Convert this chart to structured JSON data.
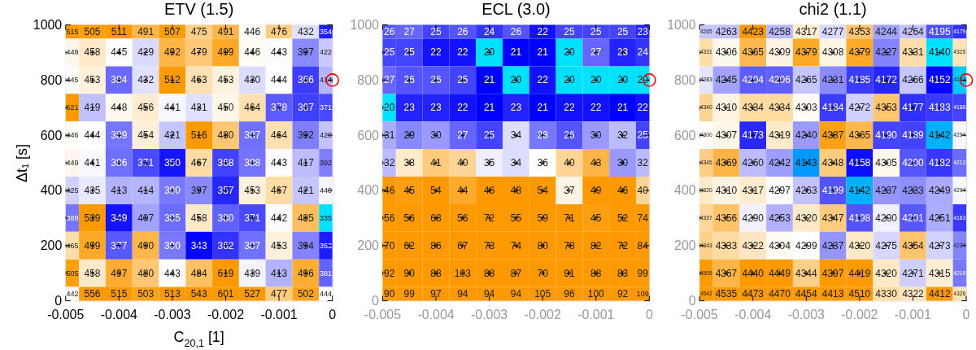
{
  "chart_data": [
    {
      "type": "heatmap",
      "title": "ETV (1.5)",
      "xlabel": "C$_{20,1}$ [1]",
      "ylabel": "Δt₁ [s]",
      "x": [
        -0.005,
        -0.0045,
        -0.004,
        -0.0035,
        -0.003,
        -0.0025,
        -0.002,
        -0.0015,
        -0.001,
        -0.0005,
        0
      ],
      "xlim": [
        -0.005,
        0
      ],
      "xticks": [
        -0.005,
        -0.004,
        -0.003,
        -0.002,
        -0.001,
        0
      ],
      "ylim": [
        0,
        1000
      ],
      "yticks": [
        0,
        200,
        400,
        600,
        800,
        1000
      ],
      "data_labels": true,
      "cells": [
        [
          515,
          505,
          511,
          491,
          507,
          475,
          491,
          446,
          476,
          432,
          354
        ],
        [
          449,
          458,
          445,
          429,
          492,
          479,
          499,
          446,
          443,
          397,
          422
        ],
        [
          445,
          453,
          384,
          432,
          512,
          463,
          453,
          430,
          444,
          366,
          414
        ],
        [
          621,
          419,
          448,
          456,
          441,
          431,
          450,
          464,
          378,
          367,
          371
        ],
        [
          446,
          444,
          389,
          454,
          421,
          516,
          480,
          387,
          464,
          392,
          420
        ],
        [
          449,
          441,
          386,
          371,
          350,
          467,
          368,
          388,
          443,
          417,
          392
        ],
        [
          425,
          435,
          413,
          414,
          390,
          397,
          357,
          453,
          467,
          421,
          440
        ],
        [
          389,
          539,
          349,
          407,
          385,
          458,
          380,
          371,
          442,
          485,
          335
        ],
        [
          465,
          499,
          377,
          490,
          390,
          343,
          362,
          387,
          453,
          394,
          353
        ],
        [
          505,
          458,
          497,
          480,
          443,
          484,
          619,
          439,
          413,
          496,
          381
        ],
        [
          442,
          556,
          515,
          503,
          513,
          543,
          601,
          527,
          477,
          502,
          444
        ]
      ],
      "series": [
        {
          "type": "scatter",
          "marker": "cross",
          "color": "#000000",
          "x": [
            -0.005,
            -0.0045,
            -0.004,
            -0.0035,
            -0.003,
            -0.0025,
            -0.002,
            -0.0015,
            -0.001,
            -0.0005,
            -0.005,
            -0.0045,
            -0.004,
            -0.0035,
            -0.003,
            -0.0025,
            -0.002,
            -0.0015,
            -0.001,
            -0.0005,
            -0.005,
            -0.0045,
            -0.004,
            -0.0035,
            -0.003,
            -0.0025,
            -0.002,
            -0.0015,
            -0.001,
            -0.0005,
            -0.005,
            -0.0045,
            -0.004,
            -0.0035,
            -0.003,
            -0.0025,
            -0.002,
            -0.0015,
            -0.001,
            -0.0005,
            -0.005,
            -0.0045,
            -0.004,
            -0.0035,
            -0.003,
            -0.0025,
            -0.002,
            -0.0015,
            -0.001,
            -0.0005,
            -0.005,
            -0.0045,
            -0.004,
            -0.0035,
            -0.003,
            -0.0025,
            -0.002,
            -0.0015,
            -0.001,
            -0.0005,
            -0.005,
            -0.0045,
            -0.004,
            -0.0035,
            -0.003,
            -0.0025,
            -0.002,
            -0.0015,
            -0.001,
            -0.0005,
            -0.005,
            -0.0045,
            -0.004,
            -0.0035,
            -0.003,
            -0.0025,
            -0.002,
            -0.0015,
            -0.001,
            -0.0005,
            -0.005,
            -0.0045,
            -0.004,
            -0.0035,
            -0.003,
            -0.0025,
            -0.002,
            -0.0015,
            -0.001,
            -0.0005,
            0
          ],
          "values": [
            900,
            900,
            900,
            900,
            900,
            900,
            900,
            900,
            900,
            900,
            800,
            800,
            800,
            800,
            800,
            800,
            800,
            800,
            800,
            800,
            700,
            700,
            700,
            700,
            700,
            700,
            700,
            700,
            700,
            700,
            600,
            600,
            600,
            600,
            600,
            600,
            600,
            600,
            600,
            600,
            500,
            500,
            500,
            500,
            500,
            500,
            500,
            500,
            500,
            500,
            400,
            400,
            400,
            400,
            400,
            400,
            400,
            400,
            400,
            400,
            300,
            300,
            300,
            300,
            300,
            300,
            300,
            300,
            300,
            300,
            200,
            200,
            200,
            200,
            200,
            200,
            200,
            200,
            200,
            200,
            100,
            100,
            100,
            100,
            100,
            100,
            100,
            100,
            100,
            100,
            800
          ],
          "value_labels": [
            null,
            null,
            null,
            null,
            null,
            null,
            null,
            null,
            null,
            null,
            null,
            null,
            null,
            null,
            null,
            null,
            null,
            null,
            null,
            null,
            null,
            null,
            null,
            null,
            null,
            null,
            null,
            null,
            null,
            null,
            null,
            null,
            null,
            null,
            null,
            null,
            null,
            null,
            null,
            null,
            null,
            null,
            null,
            null,
            null,
            null,
            null,
            null,
            null,
            null,
            null,
            null,
            null,
            null,
            null,
            null,
            null,
            null,
            null,
            null,
            null,
            null,
            null,
            null,
            null,
            null,
            null,
            null,
            null,
            null,
            null,
            null,
            null,
            null,
            null,
            null,
            null,
            null,
            null,
            null,
            null,
            null,
            null,
            null,
            null,
            null,
            null,
            null,
            null,
            null,
            null
          ]
        },
        {
          "type": "scatter",
          "marker": "circle",
          "color": "#ee0000",
          "x": [
            0
          ],
          "values": [
            800
          ],
          "value_labels": [
            null
          ]
        }
      ]
    },
    {
      "type": "heatmap",
      "title": "ECL (3.0)",
      "x": [
        -0.005,
        -0.0045,
        -0.004,
        -0.0035,
        -0.003,
        -0.0025,
        -0.002,
        -0.0015,
        -0.001,
        -0.0005,
        0
      ],
      "xlim": [
        -0.005,
        0
      ],
      "xticks": [
        -0.005,
        -0.004,
        -0.003,
        -0.002,
        -0.001,
        0
      ],
      "ylim": [
        0,
        1000
      ],
      "yticks": [
        0,
        200,
        400,
        600,
        800,
        1000
      ],
      "data_labels": true,
      "cells": [
        [
          26,
          27,
          25,
          26,
          24,
          26,
          22,
          25,
          25,
          25,
          23
        ],
        [
          25,
          25,
          22,
          22,
          20,
          21,
          21,
          20,
          27,
          23,
          24
        ],
        [
          27,
          26,
          26,
          25,
          21,
          20,
          22,
          20,
          20,
          20,
          20
        ],
        [
          20,
          23,
          23,
          22,
          21,
          23,
          21,
          22,
          22,
          21,
          22
        ],
        [
          31,
          29,
          30,
          27,
          25,
          34,
          28,
          26,
          30,
          32,
          25
        ],
        [
          32,
          38,
          41,
          40,
          35,
          34,
          36,
          40,
          43,
          30,
          32
        ],
        [
          46,
          45,
          54,
          44,
          46,
          48,
          54,
          37,
          49,
          46,
          40
        ],
        [
          56,
          56,
          68,
          56,
          72,
          55,
          59,
          71,
          45,
          52,
          74
        ],
        [
          70,
          62,
          86,
          67,
          73,
          74,
          80,
          78,
          82,
          72,
          84
        ],
        [
          92,
          90,
          88,
          103,
          88,
          87,
          70,
          91,
          88,
          83,
          99
        ],
        [
          90,
          99,
          97,
          94,
          94,
          94,
          105,
          96,
          100,
          92,
          109
        ]
      ],
      "series": [
        {
          "type": "scatter",
          "marker": "cross",
          "color": "#000000",
          "x": [
            -0.005,
            -0.0045,
            -0.004,
            -0.0035,
            -0.003,
            -0.0025,
            -0.002,
            -0.0015,
            -0.001,
            -0.0005,
            -0.005,
            -0.0045,
            -0.004,
            -0.0035,
            -0.003,
            -0.0025,
            -0.002,
            -0.0015,
            -0.001,
            -0.0005,
            -0.005,
            -0.0045,
            -0.004,
            -0.0035,
            -0.003,
            -0.0025,
            -0.002,
            -0.0015,
            -0.001,
            -0.0005,
            -0.005,
            -0.0045,
            -0.004,
            -0.0035,
            -0.003,
            -0.0025,
            -0.002,
            -0.0015,
            -0.001,
            -0.0005,
            -0.005,
            -0.0045,
            -0.004,
            -0.0035,
            -0.003,
            -0.0025,
            -0.002,
            -0.0015,
            -0.001,
            -0.0005,
            -0.005,
            -0.0045,
            -0.004,
            -0.0035,
            -0.003,
            -0.0025,
            -0.002,
            -0.0015,
            -0.001,
            -0.0005,
            -0.005,
            -0.0045,
            -0.004,
            -0.0035,
            -0.003,
            -0.0025,
            -0.002,
            -0.0015,
            -0.001,
            -0.0005,
            -0.005,
            -0.0045,
            -0.004,
            -0.0035,
            -0.003,
            -0.0025,
            -0.002,
            -0.0015,
            -0.001,
            -0.0005,
            -0.005,
            -0.0045,
            -0.004,
            -0.0035,
            -0.003,
            -0.0025,
            -0.002,
            -0.0015,
            -0.001,
            -0.0005,
            0
          ],
          "values": [
            900,
            900,
            900,
            900,
            900,
            900,
            900,
            900,
            900,
            900,
            800,
            800,
            800,
            800,
            800,
            800,
            800,
            800,
            800,
            800,
            700,
            700,
            700,
            700,
            700,
            700,
            700,
            700,
            700,
            700,
            600,
            600,
            600,
            600,
            600,
            600,
            600,
            600,
            600,
            600,
            500,
            500,
            500,
            500,
            500,
            500,
            500,
            500,
            500,
            500,
            400,
            400,
            400,
            400,
            400,
            400,
            400,
            400,
            400,
            400,
            300,
            300,
            300,
            300,
            300,
            300,
            300,
            300,
            300,
            300,
            200,
            200,
            200,
            200,
            200,
            200,
            200,
            200,
            200,
            200,
            100,
            100,
            100,
            100,
            100,
            100,
            100,
            100,
            100,
            100,
            800
          ],
          "value_labels": [
            null,
            null,
            null,
            null,
            null,
            null,
            null,
            null,
            null,
            null,
            null,
            null,
            null,
            null,
            null,
            null,
            null,
            null,
            null,
            null,
            null,
            null,
            null,
            null,
            null,
            null,
            null,
            null,
            null,
            null,
            null,
            null,
            null,
            null,
            null,
            null,
            null,
            null,
            null,
            null,
            null,
            null,
            null,
            null,
            null,
            null,
            null,
            null,
            null,
            null,
            null,
            null,
            null,
            null,
            null,
            null,
            null,
            null,
            null,
            null,
            null,
            null,
            null,
            null,
            null,
            null,
            null,
            null,
            null,
            null,
            null,
            null,
            null,
            null,
            null,
            null,
            null,
            null,
            null,
            null,
            null,
            null,
            null,
            null,
            null,
            null,
            null,
            null,
            null,
            null,
            null
          ]
        },
        {
          "type": "scatter",
          "marker": "circle",
          "color": "#ee0000",
          "x": [
            0
          ],
          "values": [
            800
          ],
          "value_labels": [
            null
          ]
        }
      ]
    },
    {
      "type": "heatmap",
      "title": "chi2 (1.1)",
      "x": [
        -0.005,
        -0.0045,
        -0.004,
        -0.0035,
        -0.003,
        -0.0025,
        -0.002,
        -0.0015,
        -0.001,
        -0.0005,
        0
      ],
      "xlim": [
        -0.005,
        0
      ],
      "xticks": [
        -0.005,
        -0.004,
        -0.003,
        -0.002,
        -0.001,
        0
      ],
      "ylim": [
        0,
        1000
      ],
      "yticks": [
        0,
        200,
        400,
        600,
        800,
        1000
      ],
      "data_labels": true,
      "cells": [
        [
          4265,
          4263,
          4423,
          4258,
          4317,
          4277,
          4353,
          4244,
          4264,
          4195,
          4179
        ],
        [
          4331,
          4306,
          4365,
          4309,
          4379,
          4308,
          4379,
          4227,
          4331,
          4140,
          4325
        ],
        [
          4283,
          4245,
          4204,
          4206,
          4265,
          4231,
          4185,
          4172,
          4266,
          4152,
          4141
        ],
        [
          4340,
          4310,
          4334,
          4334,
          4303,
          4184,
          4272,
          4353,
          4177,
          4183,
          4188
        ],
        [
          4300,
          4307,
          4173,
          4319,
          4240,
          4387,
          4365,
          4190,
          4189,
          4142,
          4294
        ],
        [
          4345,
          4369,
          4260,
          4242,
          4143,
          4348,
          4158,
          4305,
          4200,
          4182,
          4213
        ],
        [
          4320,
          4310,
          4317,
          4297,
          4263,
          4199,
          4142,
          4237,
          4233,
          4249,
          4294
        ],
        [
          4337,
          4356,
          4290,
          4253,
          4320,
          4347,
          4198,
          4290,
          4201,
          4251,
          4183
        ],
        [
          4343,
          4333,
          4322,
          4304,
          4299,
          4237,
          4320,
          4275,
          4354,
          4273,
          4227
        ],
        [
          4505,
          4367,
          4440,
          4449,
          4344,
          4397,
          4419,
          4320,
          4271,
          4315,
          4219
        ],
        [
          4542,
          4535,
          4473,
          4470,
          4454,
          4413,
          4510,
          4330,
          4322,
          4412,
          4326
        ]
      ],
      "series": [
        {
          "type": "scatter",
          "marker": "cross",
          "color": "#000000",
          "x": [
            -0.005,
            -0.0045,
            -0.004,
            -0.0035,
            -0.003,
            -0.0025,
            -0.002,
            -0.0015,
            -0.001,
            -0.0005,
            -0.005,
            -0.0045,
            -0.004,
            -0.0035,
            -0.003,
            -0.0025,
            -0.002,
            -0.0015,
            -0.001,
            -0.0005,
            -0.005,
            -0.0045,
            -0.004,
            -0.0035,
            -0.003,
            -0.0025,
            -0.002,
            -0.0015,
            -0.001,
            -0.0005,
            -0.005,
            -0.0045,
            -0.004,
            -0.0035,
            -0.003,
            -0.0025,
            -0.002,
            -0.0015,
            -0.001,
            -0.0005,
            -0.005,
            -0.0045,
            -0.004,
            -0.0035,
            -0.003,
            -0.0025,
            -0.002,
            -0.0015,
            -0.001,
            -0.0005,
            -0.005,
            -0.0045,
            -0.004,
            -0.0035,
            -0.003,
            -0.0025,
            -0.002,
            -0.0015,
            -0.001,
            -0.0005,
            -0.005,
            -0.0045,
            -0.004,
            -0.0035,
            -0.003,
            -0.0025,
            -0.002,
            -0.0015,
            -0.001,
            -0.0005,
            -0.005,
            -0.0045,
            -0.004,
            -0.0035,
            -0.003,
            -0.0025,
            -0.002,
            -0.0015,
            -0.001,
            -0.0005,
            -0.005,
            -0.0045,
            -0.004,
            -0.0035,
            -0.003,
            -0.0025,
            -0.002,
            -0.0015,
            -0.001,
            -0.0005,
            0
          ],
          "values": [
            900,
            900,
            900,
            900,
            900,
            900,
            900,
            900,
            900,
            900,
            800,
            800,
            800,
            800,
            800,
            800,
            800,
            800,
            800,
            800,
            700,
            700,
            700,
            700,
            700,
            700,
            700,
            700,
            700,
            700,
            600,
            600,
            600,
            600,
            600,
            600,
            600,
            600,
            600,
            600,
            500,
            500,
            500,
            500,
            500,
            500,
            500,
            500,
            500,
            500,
            400,
            400,
            400,
            400,
            400,
            400,
            400,
            400,
            400,
            400,
            300,
            300,
            300,
            300,
            300,
            300,
            300,
            300,
            300,
            300,
            200,
            200,
            200,
            200,
            200,
            200,
            200,
            200,
            200,
            200,
            100,
            100,
            100,
            100,
            100,
            100,
            100,
            100,
            100,
            100,
            800
          ],
          "value_labels": [
            null,
            null,
            null,
            null,
            null,
            null,
            null,
            null,
            null,
            null,
            null,
            null,
            null,
            null,
            null,
            null,
            null,
            null,
            null,
            null,
            null,
            null,
            null,
            null,
            null,
            null,
            null,
            null,
            null,
            null,
            null,
            null,
            null,
            null,
            null,
            null,
            null,
            null,
            null,
            null,
            null,
            null,
            null,
            null,
            null,
            null,
            null,
            null,
            null,
            null,
            null,
            null,
            null,
            null,
            null,
            null,
            null,
            null,
            null,
            null,
            null,
            null,
            null,
            null,
            null,
            null,
            null,
            null,
            null,
            null,
            null,
            null,
            null,
            null,
            null,
            null,
            null,
            null,
            null,
            null,
            null,
            null,
            null,
            null,
            null,
            null,
            null,
            null,
            null,
            null,
            null
          ]
        },
        {
          "type": "scatter",
          "marker": "circle",
          "color": "#ee0000",
          "x": [
            0
          ],
          "values": [
            800
          ],
          "value_labels": [
            null
          ]
        }
      ]
    }
  ]
}
